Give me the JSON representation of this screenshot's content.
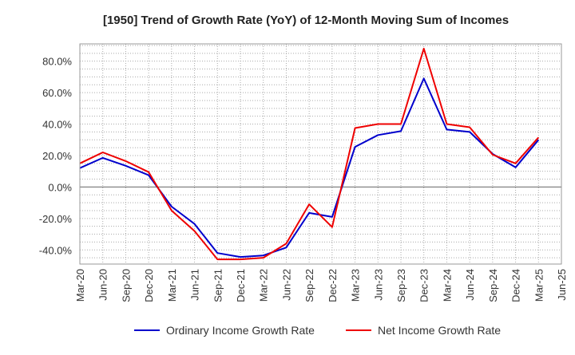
{
  "chart_data": {
    "type": "line",
    "title": "[1950]  Trend of Growth Rate (YoY) of 12-Month Moving Sum of Incomes",
    "xlabel": "",
    "ylabel": "",
    "x_ticks": [
      "Mar-20",
      "Jun-20",
      "Sep-20",
      "Dec-20",
      "Mar-21",
      "Jun-21",
      "Sep-21",
      "Dec-21",
      "Mar-22",
      "Jun-22",
      "Sep-22",
      "Dec-22",
      "Mar-23",
      "Jun-23",
      "Sep-23",
      "Dec-23",
      "Mar-24",
      "Jun-24",
      "Sep-24",
      "Dec-24",
      "Mar-25",
      "Jun-25"
    ],
    "y_ticks": [
      "80.0%",
      "60.0%",
      "40.0%",
      "20.0%",
      "0.0%",
      "-20.0%",
      "-40.0%"
    ],
    "y_tick_values": [
      80,
      60,
      40,
      20,
      0,
      -20,
      -40
    ],
    "ylim": [
      -49,
      91
    ],
    "grid": true,
    "legend_position": "bottom",
    "x": [
      "Mar-20",
      "Jun-20",
      "Sep-20",
      "Dec-20",
      "Mar-21",
      "Jun-21",
      "Sep-21",
      "Dec-21",
      "Mar-22",
      "Jun-22",
      "Sep-22",
      "Dec-22",
      "Mar-23",
      "Jun-23",
      "Sep-23",
      "Dec-23",
      "Mar-24",
      "Jun-24",
      "Sep-24",
      "Dec-24",
      "Mar-25"
    ],
    "series": [
      {
        "name": "Ordinary Income Growth Rate",
        "color": "#0000cc",
        "values": [
          12.0,
          18.5,
          13.5,
          7.5,
          -12.5,
          -23.5,
          -42.0,
          -44.5,
          -43.5,
          -38.5,
          -16.5,
          -19.0,
          25.5,
          33.0,
          35.5,
          69.0,
          36.5,
          35.0,
          21.0,
          12.5,
          30.0
        ]
      },
      {
        "name": "Net Income Growth Rate",
        "color": "#ee0000",
        "values": [
          15.0,
          22.0,
          16.5,
          9.5,
          -15.0,
          -28.0,
          -46.0,
          -46.0,
          -45.0,
          -36.0,
          -11.0,
          -25.5,
          37.5,
          40.0,
          40.0,
          88.0,
          40.0,
          38.0,
          20.5,
          15.0,
          31.5
        ]
      }
    ]
  }
}
